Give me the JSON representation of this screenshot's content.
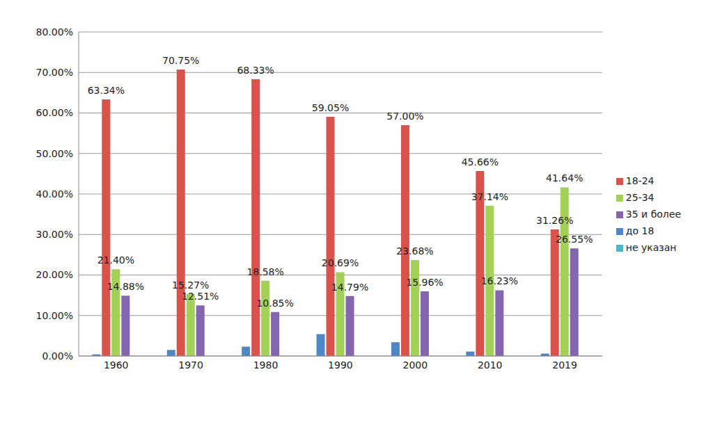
{
  "chart_data": {
    "type": "bar",
    "categories": [
      "1960",
      "1970",
      "1980",
      "1990",
      "2000",
      "2010",
      "2019"
    ],
    "series": [
      {
        "name": "до 18",
        "color": "#4f86c6",
        "values": [
          0.4,
          1.5,
          2.3,
          5.4,
          3.4,
          1.1,
          0.6
        ]
      },
      {
        "name": "18-24",
        "color": "#d9534c",
        "values": [
          63.34,
          70.75,
          68.33,
          59.05,
          57.0,
          45.66,
          31.26
        ],
        "data_labels": true,
        "value_labels": [
          "63.34%",
          "70.75%",
          "68.33%",
          "59.05%",
          "57.00%",
          "45.66%",
          "31.26%"
        ]
      },
      {
        "name": "25-34",
        "color": "#a3d158",
        "values": [
          21.4,
          15.27,
          18.58,
          20.69,
          23.68,
          37.14,
          41.64
        ],
        "data_labels": true,
        "value_labels": [
          "21.40%",
          "15.27%",
          "18.58%",
          "20.69%",
          "23.68%",
          "37.14%",
          "41.64%"
        ]
      },
      {
        "name": "35 и более",
        "color": "#8466b0",
        "values": [
          14.88,
          12.51,
          10.85,
          14.79,
          15.96,
          16.23,
          26.55
        ],
        "data_labels": true,
        "value_labels": [
          "14.88%",
          "12.51%",
          "10.85%",
          "14.79%",
          "15.96%",
          "16.23%",
          "26.55%"
        ]
      },
      {
        "name": "не указан",
        "color": "#4bb6cc",
        "values": [
          0,
          0,
          0,
          0,
          0,
          0,
          0
        ]
      }
    ],
    "ylim": [
      0,
      80
    ],
    "yticks": [
      {
        "value": 0,
        "label": "0.00%"
      },
      {
        "value": 10,
        "label": "10.00%"
      },
      {
        "value": 20,
        "label": "20.00%"
      },
      {
        "value": 30,
        "label": "30.00%"
      },
      {
        "value": 40,
        "label": "40.00%"
      },
      {
        "value": 50,
        "label": "50.00%"
      },
      {
        "value": 60,
        "label": "60.00%"
      },
      {
        "value": 70,
        "label": "70.00%"
      },
      {
        "value": 80,
        "label": "80.00%"
      }
    ],
    "grid": true,
    "legend": "right"
  }
}
